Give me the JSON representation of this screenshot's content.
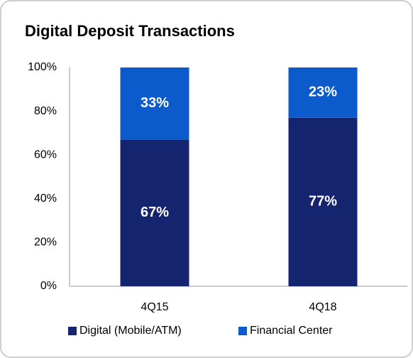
{
  "chart_data": {
    "type": "stacked_bar",
    "title": "Digital Deposit Transactions",
    "categories": [
      "4Q15",
      "4Q18"
    ],
    "series": [
      {
        "name": "Digital (Mobile/ATM)",
        "color": "#14246e",
        "values": [
          67,
          77
        ],
        "value_labels": [
          "67%",
          "77%"
        ]
      },
      {
        "name": "Financial Center",
        "color": "#0b5bcc",
        "values": [
          33,
          23
        ],
        "value_labels": [
          "33%",
          "23%"
        ]
      }
    ],
    "ylim": [
      0,
      100
    ],
    "yticks": [
      {
        "value": 0,
        "label": "0%"
      },
      {
        "value": 20,
        "label": "20%"
      },
      {
        "value": 40,
        "label": "40%"
      },
      {
        "value": 60,
        "label": "60%"
      },
      {
        "value": 80,
        "label": "80%"
      },
      {
        "value": 100,
        "label": "100%"
      }
    ],
    "legend": "bottom"
  }
}
